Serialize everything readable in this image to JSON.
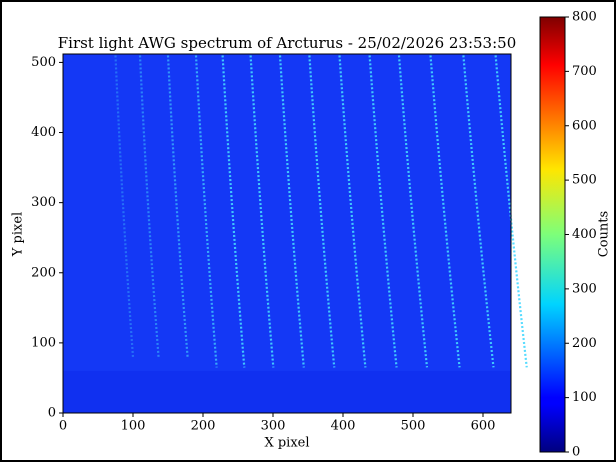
{
  "chart_data": {
    "type": "heatmap",
    "title": "First light AWG spectrum of Arcturus - 25/02/2026 23:53:50",
    "x_label": "X pixel",
    "y_label": "Y pixel",
    "xlim": [
      0,
      640
    ],
    "xticks": [
      0,
      100,
      200,
      300,
      400,
      500,
      600
    ],
    "ylim": [
      0,
      512
    ],
    "yticks": [
      0,
      100,
      200,
      300,
      400,
      500
    ],
    "colormap": "jet",
    "colorbar": {
      "label": "Counts",
      "lim": [
        0,
        800
      ],
      "ticks": [
        0,
        100,
        200,
        300,
        400,
        500,
        600,
        700,
        800
      ]
    }
  }
}
